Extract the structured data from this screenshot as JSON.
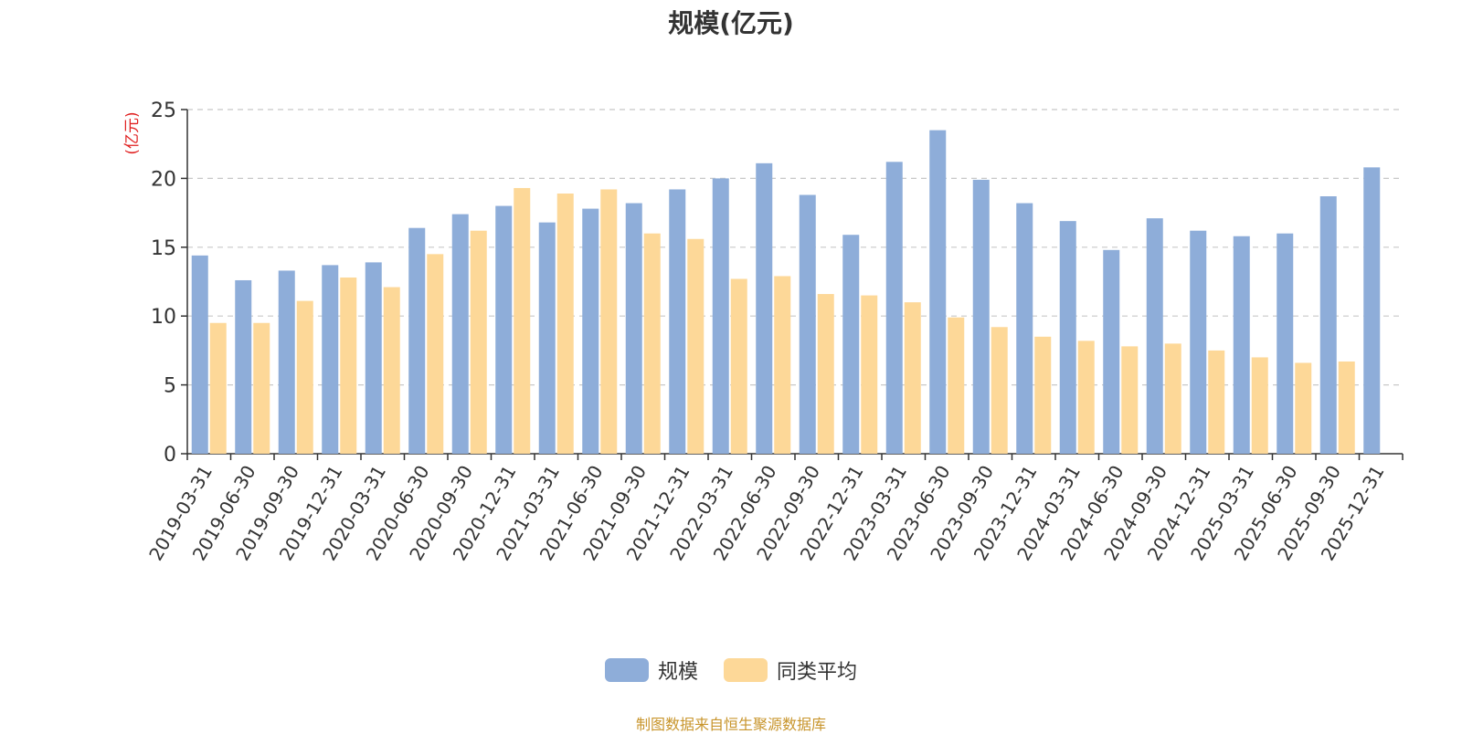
{
  "chart_data": {
    "type": "bar",
    "title": "规模(亿元)",
    "ylabel": "(亿元)",
    "xlabel": "",
    "ylim": [
      0,
      25
    ],
    "yticks": [
      0,
      5,
      10,
      15,
      20,
      25
    ],
    "grid": true,
    "legend_position": "bottom-center",
    "categories": [
      "2019-03-31",
      "2019-06-30",
      "2019-09-30",
      "2019-12-31",
      "2020-03-31",
      "2020-06-30",
      "2020-09-30",
      "2020-12-31",
      "2021-03-31",
      "2021-06-30",
      "2021-09-30",
      "2021-12-31",
      "2022-03-31",
      "2022-06-30",
      "2022-09-30",
      "2022-12-31",
      "2023-03-31",
      "2023-06-30",
      "2023-09-30",
      "2023-12-31",
      "2024-03-31",
      "2024-06-30",
      "2024-09-30",
      "2024-12-31",
      "2025-03-31",
      "2025-06-30",
      "2025-09-30",
      "2025-12-31"
    ],
    "series": [
      {
        "name": "规模",
        "color": "#8eadd9",
        "values": [
          14.4,
          12.6,
          13.3,
          13.7,
          13.9,
          16.4,
          17.4,
          18.0,
          16.8,
          17.8,
          18.2,
          19.2,
          20.0,
          21.1,
          18.8,
          15.9,
          21.2,
          23.5,
          19.9,
          18.2,
          16.9,
          14.8,
          17.1,
          16.2,
          15.8,
          16.0,
          18.7,
          20.8
        ]
      },
      {
        "name": "同类平均",
        "color": "#fdd898",
        "values": [
          9.5,
          9.5,
          11.1,
          12.8,
          12.1,
          14.5,
          16.2,
          19.3,
          18.9,
          19.2,
          16.0,
          15.6,
          12.7,
          12.9,
          11.6,
          11.5,
          11.0,
          9.9,
          9.2,
          8.5,
          8.2,
          7.8,
          8.0,
          7.5,
          7.0,
          6.6,
          6.7,
          null
        ]
      }
    ]
  },
  "source_note": "制图数据来自恒生聚源数据库"
}
